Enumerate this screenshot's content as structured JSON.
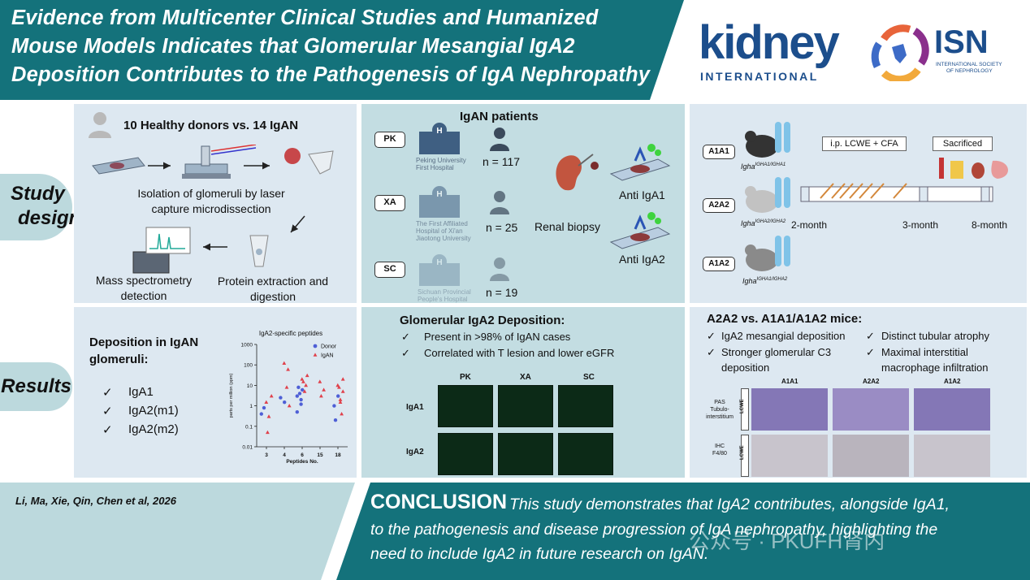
{
  "header": {
    "title_line1": "Evidence from Multicenter Clinical Studies and Humanized",
    "title_line2": "Mouse Models Indicates that Glomerular Mesangial IgA2",
    "title_line3": "Deposition Contributes to the Pathogenesis of IgA Nephropathy"
  },
  "logos": {
    "kidney": "kidney",
    "kidney_sub": "INTERNATIONAL",
    "isn": "ISN",
    "isn_sub1": "INTERNATIONAL SOCIETY",
    "isn_sub2": "OF NEPHROLOGY"
  },
  "side_labels": {
    "study_1": "Study",
    "study_2": "design",
    "results": "Results"
  },
  "panel1": {
    "title": "10 Healthy donors vs. 14 IgAN",
    "step1_l1": "Isolation of glomeruli by laser",
    "step1_l2": "capture microdissection",
    "step2_l1": "Protein extraction and",
    "step2_l2": "digestion",
    "step3_l1": "Mass spectrometry",
    "step3_l2": "detection"
  },
  "panel2": {
    "title": "IgAN patients",
    "sites": [
      {
        "code": "PK",
        "hospital_l1": "Peking University",
        "hospital_l2": "First Hospital",
        "hospital_l3": "",
        "n": "n = 117"
      },
      {
        "code": "XA",
        "hospital_l1": "The First Affiliated",
        "hospital_l2": "Hospital of Xi'an",
        "hospital_l3": "Jiaotong University",
        "n": "n = 25"
      },
      {
        "code": "SC",
        "hospital_l1": "Sichuan Provincial",
        "hospital_l2": "People's Hospital",
        "hospital_l3": "",
        "n": "n = 19"
      }
    ],
    "biopsy": "Renal biopsy",
    "anti1": "Anti IgA1",
    "anti2": "Anti IgA2"
  },
  "panel3": {
    "mice": [
      {
        "tag": "A1A1",
        "genotype": "Igha",
        "sup": "IGHA1/IGHA1"
      },
      {
        "tag": "A2A2",
        "genotype": "Igha",
        "sup": "IGHA2/IGHA2"
      },
      {
        "tag": "A1A2",
        "genotype": "Igha",
        "sup": "IGHA1/IGHA2"
      }
    ],
    "ip_label": "i.p. LCWE + CFA",
    "sacrificed_label": "Sacrificed",
    "t1": "2-month",
    "t2": "3-month",
    "t3": "8-month"
  },
  "panel4": {
    "title_l1": "Deposition in IgAN",
    "title_l2": "glomeruli:",
    "items": [
      "IgA1",
      "IgA2(m1)",
      "IgA2(m2)"
    ],
    "check": "✓"
  },
  "chart_data": {
    "type": "scatter",
    "title": "IgA2-specific peptides",
    "xlabel": "Peptides No.",
    "ylabel": "parts per million (ppm)",
    "y_scale": "log",
    "ylim": [
      0.01,
      1000
    ],
    "yticks": [
      "1000",
      "100",
      "10",
      "1",
      "0.1",
      "0.01"
    ],
    "categories": [
      "3",
      "4",
      "6",
      "15",
      "18"
    ],
    "series": [
      {
        "name": "Donor",
        "color": "#4e5fd6",
        "points": [
          [
            0,
            0.4
          ],
          [
            0,
            0.8
          ],
          [
            1,
            1.5
          ],
          [
            1,
            2.5
          ],
          [
            2,
            2
          ],
          [
            2,
            3
          ],
          [
            2,
            4
          ],
          [
            2,
            6
          ],
          [
            2,
            8
          ],
          [
            2,
            1.2
          ],
          [
            2,
            0.5
          ],
          [
            4,
            0.2
          ],
          [
            4,
            3
          ],
          [
            4,
            1
          ]
        ]
      },
      {
        "name": "IgAN",
        "color": "#e0404b",
        "points": [
          [
            0,
            1.5
          ],
          [
            0,
            0.3
          ],
          [
            0,
            3
          ],
          [
            0,
            0.05
          ],
          [
            1,
            60
          ],
          [
            1,
            120
          ],
          [
            1,
            8
          ],
          [
            1,
            1
          ],
          [
            2,
            15
          ],
          [
            2,
            10
          ],
          [
            2,
            20
          ],
          [
            2,
            5
          ],
          [
            2,
            30
          ],
          [
            3,
            3
          ],
          [
            3,
            6
          ],
          [
            3,
            15
          ],
          [
            4,
            2
          ],
          [
            4,
            5
          ],
          [
            4,
            8
          ],
          [
            4,
            0.4
          ],
          [
            4,
            10
          ],
          [
            4,
            1.5
          ],
          [
            4,
            20
          ]
        ]
      }
    ]
  },
  "panel5": {
    "title": "Glomerular IgA2 Deposition:",
    "items": [
      "Present in >98% of IgAN cases",
      "Correlated with T lesion and lower eGFR"
    ],
    "check": "✓",
    "cols": [
      "PK",
      "XA",
      "SC"
    ],
    "rows": [
      "IgA1",
      "IgA2"
    ]
  },
  "panel6": {
    "title": "A2A2 vs. A1A1/A1A2 mice:",
    "left_items": [
      "IgA2 mesangial deposition",
      "Stronger glomerular C3",
      "deposition"
    ],
    "right_items": [
      "Distinct tubular atrophy",
      "Maximal interstitial",
      "macrophage infiltration"
    ],
    "check": "✓",
    "cols": [
      "A1A1",
      "A2A2",
      "A1A2"
    ],
    "row1_l1": "PAS",
    "row1_l2": "Tubulo-",
    "row1_l3": "interstitium",
    "row2_l1": "IHC",
    "row2_l2": "F4/80",
    "side": "LCWE"
  },
  "footer": {
    "citation": "Li, Ma, Xie, Qin, Chen et al, 2026",
    "conclusion_label": "CONCLUSION",
    "conclusion_l1": "This study demonstrates that IgA2 contributes, alongside IgA1,",
    "conclusion_l2": "to the pathogenesis and disease progression of IgA nephropathy, highlighting the",
    "conclusion_l3": "need to include IgA2 in future research on IgAN.",
    "watermark": "公众号 · PKUFH肾内"
  },
  "colors": {
    "teal": "#14727b",
    "light_teal": "#bcd9dd",
    "panel_blue": "#dde8f1",
    "panel_teal": "#c3dde2",
    "kidney_blue": "#1c4e8c"
  }
}
